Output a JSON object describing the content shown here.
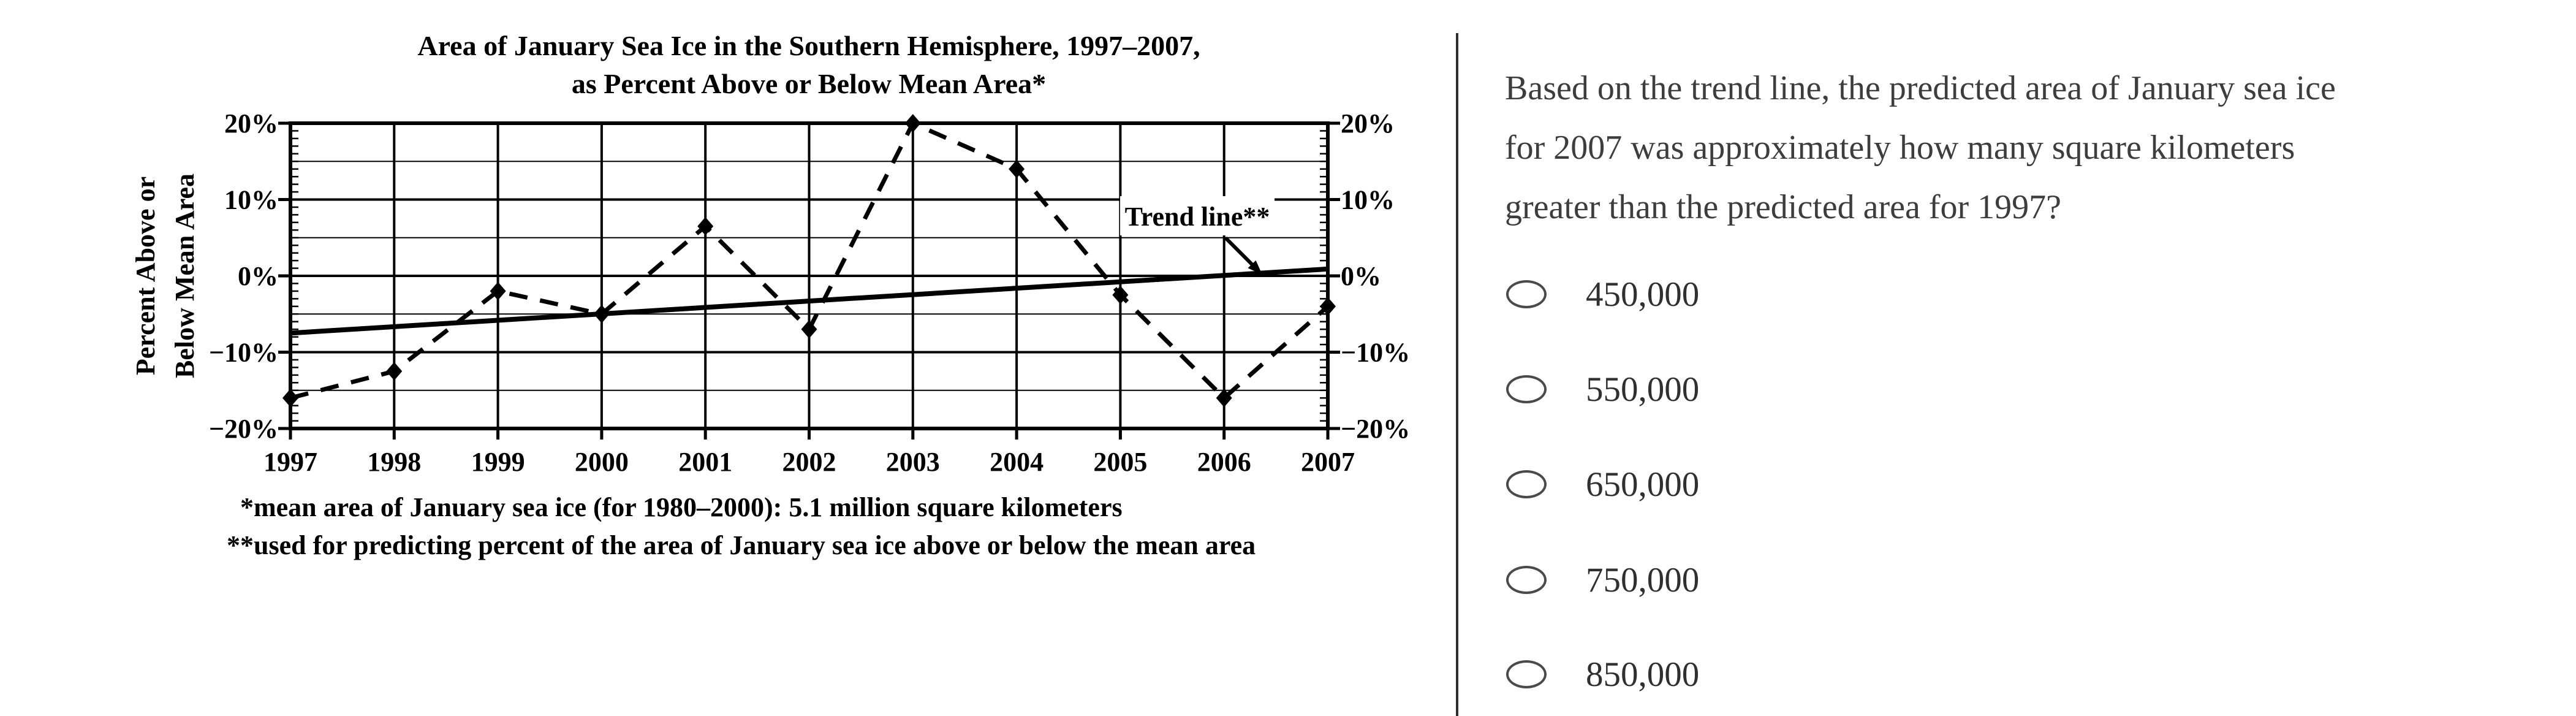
{
  "chart_data": {
    "type": "line",
    "title_line1": "Area of January Sea Ice in the Southern Hemisphere, 1997–2007,",
    "title_line2": "as Percent Above or Below Mean Area*",
    "ylabel_line1": "Percent Above or",
    "ylabel_line2": "Below Mean Area",
    "trend_label": "Trend line**",
    "footnote_1": "*mean area of January sea ice (for 1980–2000): 5.1 million square kilometers",
    "footnote_2": "**used for predicting percent of the area of January sea ice above or below the mean area",
    "x": [
      1997,
      1998,
      1999,
      2000,
      2001,
      2002,
      2003,
      2004,
      2005,
      2006,
      2007
    ],
    "x_tick_labels": [
      "1997",
      "1998",
      "1999",
      "2000",
      "2001",
      "2002",
      "2003",
      "2004",
      "2005",
      "2006",
      "2007"
    ],
    "xlim": [
      1997,
      2007
    ],
    "ylim": [
      -20,
      20
    ],
    "y_tick_values": [
      20,
      10,
      0,
      -10,
      -20
    ],
    "y_tick_labels": [
      "20%",
      "10%",
      "0%",
      "−10%",
      "−20%"
    ],
    "y_minor_gridline_values": [
      15,
      5,
      -5,
      -15
    ],
    "grid": "major horizontal/vertical solid, minor horizontal thin, y tick labels on both sides",
    "legend_position": "none (in-plot label with arrow for trend line)",
    "series": [
      {
        "name": "percent above or below mean area (observed)",
        "style": "dashed",
        "marker": "diamond",
        "values": [
          -16,
          -12.5,
          -2,
          -5,
          6.5,
          -7,
          20,
          14,
          -2.5,
          -16,
          -4
        ]
      },
      {
        "name": "Trend line**",
        "style": "solid",
        "trend_endpoints": {
          "x": [
            1997,
            2007
          ],
          "y": [
            -7.5,
            0.9
          ]
        }
      }
    ]
  },
  "question": {
    "lines": [
      "Based on the trend line, the predicted area of January sea ice",
      "for 2007 was approximately how many square kilometers",
      "greater than the predicted area for 1997?"
    ]
  },
  "options": [
    "450,000",
    "550,000",
    "650,000",
    "750,000",
    "850,000"
  ],
  "options_selected": null
}
